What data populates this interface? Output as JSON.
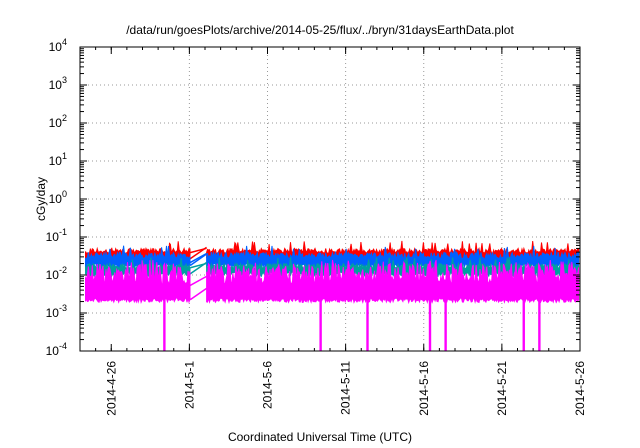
{
  "chart_data": {
    "type": "line",
    "title": "/data/run/goesPlots/archive/2014-05-25/flux/../bryn/31daysEarthData.plot",
    "xlabel": "Coordinated Universal Time (UTC)",
    "ylabel": "cGy/day",
    "yscale": "log",
    "ylim": [
      0.0001,
      10000
    ],
    "xlim": [
      "2014-04-24",
      "2014-05-26"
    ],
    "grid": true,
    "legend": "none",
    "x_ticks": [
      "2014-4-26",
      "2014-5-1",
      "2014-5-6",
      "2014-5-11",
      "2014-5-16",
      "2014-5-21",
      "2014-5-26"
    ],
    "y_ticks": [
      {
        "base": "10",
        "exp": "-4"
      },
      {
        "base": "10",
        "exp": "-3"
      },
      {
        "base": "10",
        "exp": "-2"
      },
      {
        "base": "10",
        "exp": "-1"
      },
      {
        "base": "10",
        "exp": "0"
      },
      {
        "base": "10",
        "exp": "1"
      },
      {
        "base": "10",
        "exp": "2"
      },
      {
        "base": "10",
        "exp": "3"
      },
      {
        "base": "10",
        "exp": "4"
      }
    ],
    "data_gap": {
      "start": "2014-05-01",
      "end": "2014-05-02"
    },
    "series": [
      {
        "color": "#ff0000",
        "typical_low": 0.03,
        "typical_high": 0.05,
        "peak": 0.08
      },
      {
        "color": "#0060ff",
        "typical_low": 0.02,
        "typical_high": 0.04,
        "peak": 0.06
      },
      {
        "color": "#00a0a0",
        "typical_low": 0.012,
        "typical_high": 0.02,
        "peak": 0.03
      },
      {
        "color": "#ff00ff",
        "typical_low": 0.0025,
        "typical_high": 0.02,
        "peak": 0.025
      }
    ],
    "dropouts": [
      {
        "x": "2014-04-29",
        "min": 0.0001
      },
      {
        "x": "2014-05-09",
        "min": 0.0001
      },
      {
        "x": "2014-05-12",
        "min": 0.0001
      },
      {
        "x": "2014-05-16",
        "min": 0.0001
      },
      {
        "x": "2014-05-17",
        "min": 0.0001
      },
      {
        "x": "2014-05-22",
        "min": 0.0001
      },
      {
        "x": "2014-05-23",
        "min": 0.0001
      }
    ]
  }
}
